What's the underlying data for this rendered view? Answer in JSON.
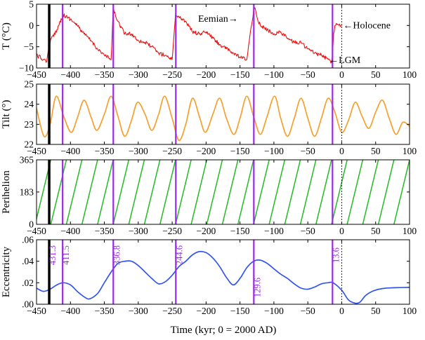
{
  "chart_data": {
    "type": "line",
    "shared_xlabel": "Time (kyr; 0 = 2000 AD)",
    "xlim": [
      -450,
      100
    ],
    "xticks": [
      -450,
      -400,
      -350,
      -300,
      -250,
      -200,
      -150,
      -100,
      -50,
      0,
      50,
      100
    ],
    "xtick_labels": [
      "−450",
      "−400",
      "−350",
      "−300",
      "−250",
      "−200",
      "−150",
      "−100",
      "−50",
      "0",
      "50",
      "100"
    ],
    "black_marker": 431.3,
    "interglacial_markers": [
      411.5,
      336.8,
      244.6,
      129.6,
      13.6
    ],
    "marker_labels": [
      "431.3",
      "411.5",
      "336.8",
      "244.6",
      "129.6",
      "13.6"
    ],
    "present_line_x": 0,
    "colors": {
      "temperature": "#ee1111",
      "tilt": "#f5a030",
      "perihelion": "#22bb22",
      "eccentricity": "#3355ee",
      "marker": "#9a2be6",
      "black_marker": "#000000",
      "axis": "#000000"
    },
    "panels": [
      {
        "name": "temperature",
        "ylabel": "T (°C)",
        "ylim": [
          -10,
          5
        ],
        "yticks": [
          -10,
          -5,
          0,
          5
        ],
        "ytick_labels": [
          "−10",
          "−5",
          "0",
          "5"
        ],
        "x": [
          -450,
          -440,
          -435,
          -431,
          -420,
          -411,
          -400,
          -390,
          -380,
          -370,
          -360,
          -350,
          -340,
          -337,
          -330,
          -320,
          -310,
          -300,
          -290,
          -280,
          -270,
          -260,
          -250,
          -245,
          -240,
          -230,
          -220,
          -210,
          -200,
          -190,
          -180,
          -170,
          -160,
          -150,
          -140,
          -130,
          -128,
          -125,
          -120,
          -110,
          -100,
          -90,
          -80,
          -70,
          -60,
          -50,
          -40,
          -30,
          -20,
          -15,
          -13.6,
          -12,
          -10,
          -8,
          -5,
          0
        ],
        "y": [
          -7,
          -8,
          -8.5,
          -4,
          -1,
          2.5,
          1.5,
          0,
          -2,
          -3.5,
          -5.5,
          -7,
          -8,
          3.8,
          1,
          -2,
          -2,
          -3.5,
          -4,
          -5,
          -6.5,
          -7,
          -8,
          2.8,
          2,
          1,
          -1.5,
          -2,
          -1.5,
          -3,
          -4.5,
          -5.5,
          -6.5,
          -7.5,
          -8,
          3.5,
          4.2,
          2,
          0,
          -1,
          -2,
          -1.5,
          -3,
          -4,
          -4,
          -5.5,
          -6.5,
          -7,
          -8,
          -8.5,
          -7,
          -2,
          0,
          0.5,
          0.2,
          0
        ]
      },
      {
        "name": "tilt",
        "ylabel": "Tilt (°)",
        "ylim": [
          22,
          25
        ],
        "yticks": [
          22,
          23,
          24,
          25
        ],
        "ytick_labels": [
          "22",
          "23",
          "24",
          "25"
        ],
        "x": [
          -450,
          -439,
          -430,
          -421,
          -410,
          -399,
          -390,
          -380,
          -370,
          -361,
          -350,
          -340,
          -330,
          -320,
          -310,
          -301,
          -290,
          -280,
          -270,
          -261,
          -250,
          -240,
          -230,
          -220,
          -210,
          -201,
          -190,
          -180,
          -170,
          -159,
          -150,
          -140,
          -130,
          -120,
          -110,
          -99,
          -90,
          -80,
          -70,
          -60,
          -50,
          -40,
          -30,
          -20,
          -10,
          0,
          10,
          20,
          30,
          40,
          50,
          60,
          70,
          80,
          90,
          100
        ],
        "y": [
          23.8,
          22.4,
          23.0,
          24.4,
          23.4,
          22.6,
          23.3,
          24.2,
          23.4,
          22.7,
          23.5,
          24.4,
          23.4,
          22.4,
          23.2,
          24.1,
          23.5,
          22.7,
          23.5,
          24.4,
          23.3,
          22.2,
          23.0,
          24.3,
          23.4,
          22.6,
          23.5,
          24.3,
          23.3,
          22.5,
          23.3,
          24.4,
          23.4,
          22.5,
          23.4,
          24.4,
          23.3,
          22.4,
          23.3,
          24.3,
          23.3,
          22.4,
          23.3,
          24.3,
          23.6,
          22.6,
          23.2,
          24.1,
          23.4,
          22.8,
          23.6,
          24.2,
          23.3,
          22.5,
          23.1,
          22.9
        ],
        "curve": "smooth"
      },
      {
        "name": "perihelion",
        "ylabel": "Perihelion",
        "ylim": [
          0,
          365
        ],
        "yticks": [
          0,
          183,
          365
        ],
        "ytick_labels": [
          "0",
          "183",
          "365"
        ],
        "period_kyr": 23,
        "phase_zero_x": -15,
        "segments": 24
      },
      {
        "name": "eccentricity",
        "ylabel": "Eccentricity",
        "ylim": [
          0,
          0.06
        ],
        "yticks": [
          0,
          0.02,
          0.04,
          0.06
        ],
        "ytick_labels": [
          ".00",
          ".02",
          ".04",
          ".06"
        ],
        "x": [
          -450,
          -440,
          -430,
          -420,
          -411,
          -400,
          -390,
          -380,
          -372,
          -360,
          -350,
          -340,
          -330,
          -320,
          -310,
          -300,
          -290,
          -280,
          -270,
          -260,
          -250,
          -240,
          -230,
          -220,
          -210,
          -200,
          -190,
          -180,
          -170,
          -160,
          -150,
          -140,
          -130,
          -120,
          -110,
          -100,
          -90,
          -80,
          -70,
          -60,
          -50,
          -40,
          -30,
          -20,
          -13,
          0,
          10,
          20,
          27,
          35,
          45,
          55,
          65,
          75,
          85,
          100
        ],
        "y": [
          0.015,
          0.012,
          0.014,
          0.018,
          0.02,
          0.018,
          0.012,
          0.007,
          0.005,
          0.01,
          0.02,
          0.03,
          0.038,
          0.04,
          0.04,
          0.036,
          0.03,
          0.024,
          0.019,
          0.021,
          0.027,
          0.035,
          0.04,
          0.046,
          0.049,
          0.048,
          0.043,
          0.035,
          0.025,
          0.018,
          0.024,
          0.034,
          0.04,
          0.041,
          0.038,
          0.033,
          0.028,
          0.024,
          0.019,
          0.015,
          0.014,
          0.016,
          0.019,
          0.02,
          0.02,
          0.013,
          0.004,
          0.001,
          0.002,
          0.008,
          0.012,
          0.014,
          0.015,
          0.0153,
          0.0155,
          0.0157
        ],
        "curve": "smooth"
      }
    ],
    "annotations": [
      {
        "panel": "temperature",
        "text": "Eemian→",
        "x_data": -153,
        "y_data": 1.5
      },
      {
        "panel": "temperature",
        "text": "←Holocene",
        "x_data": 2,
        "y_data": 0
      },
      {
        "panel": "temperature",
        "text": "←LGM",
        "x_data": -19,
        "y_data": -8.2
      }
    ]
  }
}
